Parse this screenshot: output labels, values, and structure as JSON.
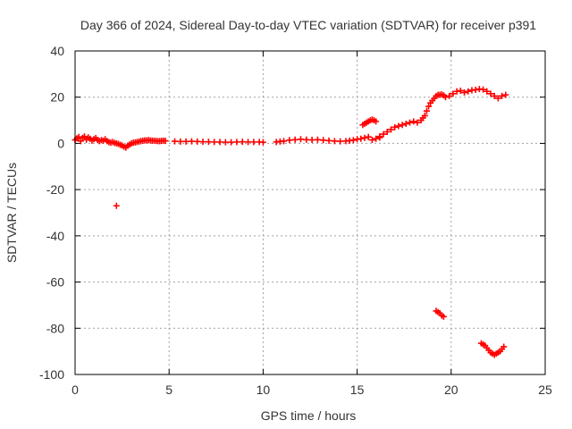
{
  "chart_data": {
    "type": "scatter",
    "title": "Day 366 of 2024, Sidereal Day-to-day VTEC variation (SDTVAR) for receiver p391",
    "xlabel": "GPS time / hours",
    "ylabel": "SDTVAR / TECUs",
    "xlim": [
      0,
      25
    ],
    "ylim": [
      -100,
      40
    ],
    "x_ticks": [
      0,
      5,
      10,
      15,
      20,
      25
    ],
    "y_ticks": [
      -100,
      -80,
      -60,
      -40,
      -20,
      0,
      20,
      40
    ],
    "grid": true,
    "marker": "plus",
    "color": "#ff0000",
    "series": [
      {
        "name": "SDTVAR",
        "x": [
          0.0,
          0.1,
          0.2,
          0.3,
          0.4,
          0.5,
          0.6,
          0.7,
          0.8,
          0.9,
          1.0,
          1.1,
          1.2,
          1.3,
          1.4,
          1.5,
          1.6,
          1.7,
          1.8,
          1.9,
          2.0,
          2.1,
          2.2,
          2.3,
          2.4,
          2.5,
          2.6,
          2.7,
          2.8,
          2.9,
          3.0,
          3.1,
          3.2,
          3.3,
          3.4,
          3.5,
          3.6,
          3.7,
          3.8,
          3.9,
          4.0,
          4.1,
          4.2,
          4.3,
          4.4,
          4.5,
          4.6,
          4.7,
          4.8,
          5.3,
          5.6,
          5.9,
          6.2,
          6.5,
          6.8,
          7.1,
          7.4,
          7.7,
          8.0,
          8.3,
          8.6,
          8.9,
          9.2,
          9.5,
          9.8,
          10.0,
          10.7,
          10.9,
          11.1,
          11.4,
          11.7,
          12.0,
          12.3,
          12.6,
          12.9,
          13.2,
          13.5,
          13.8,
          14.1,
          14.4,
          14.6,
          14.8,
          15.0,
          15.2,
          15.4,
          15.6,
          15.8,
          16.0,
          16.2,
          15.3,
          15.4,
          15.5,
          15.6,
          15.7,
          15.8,
          15.9,
          16.0,
          16.2,
          16.4,
          16.6,
          16.8,
          17.0,
          17.2,
          17.4,
          17.6,
          17.8,
          18.0,
          18.2,
          18.4,
          18.5,
          18.6,
          18.7,
          18.8,
          18.9,
          19.0,
          19.1,
          19.2,
          19.3,
          19.4,
          19.5,
          19.6,
          19.7,
          19.9,
          20.1,
          20.3,
          20.5,
          20.7,
          20.9,
          21.1,
          21.3,
          21.5,
          21.7,
          21.9,
          22.1,
          22.3,
          22.5,
          22.7,
          22.9,
          2.2,
          19.2,
          19.3,
          19.4,
          19.5,
          19.6,
          21.6,
          21.7,
          21.8,
          21.9,
          22.0,
          22.1,
          22.2,
          22.3,
          22.4,
          22.5,
          22.6,
          22.7,
          22.8
        ],
        "y": [
          1.5,
          2.2,
          2.8,
          1.0,
          2.4,
          3.0,
          1.6,
          2.6,
          2.0,
          1.2,
          1.8,
          2.3,
          1.5,
          1.0,
          1.4,
          1.2,
          1.8,
          1.0,
          0.5,
          0.3,
          0.6,
          0.2,
          0.0,
          -0.2,
          -0.6,
          -0.9,
          -1.5,
          -1.8,
          -1.0,
          -0.5,
          0.0,
          0.3,
          0.4,
          0.6,
          0.8,
          1.0,
          1.2,
          1.3,
          1.3,
          1.4,
          1.3,
          1.2,
          1.2,
          1.1,
          1.0,
          1.0,
          1.1,
          1.2,
          1.1,
          0.9,
          0.8,
          0.8,
          0.9,
          0.8,
          0.7,
          0.7,
          0.6,
          0.6,
          0.5,
          0.5,
          0.6,
          0.7,
          0.6,
          0.6,
          0.6,
          0.5,
          0.6,
          0.8,
          1.0,
          1.4,
          1.6,
          1.8,
          1.6,
          1.5,
          1.6,
          1.4,
          1.2,
          1.0,
          0.9,
          1.0,
          1.2,
          1.4,
          1.8,
          2.0,
          2.4,
          2.8,
          1.5,
          2.0,
          2.5,
          8.0,
          8.5,
          9.0,
          9.5,
          10.0,
          10.3,
          10.0,
          9.5,
          3.0,
          4.0,
          5.0,
          6.0,
          7.0,
          7.5,
          8.0,
          8.5,
          9.0,
          9.5,
          9.0,
          10.0,
          11.0,
          12.0,
          14.0,
          16.0,
          17.5,
          18.5,
          19.5,
          20.5,
          21.0,
          21.0,
          21.2,
          20.8,
          20.0,
          20.5,
          21.5,
          22.5,
          22.8,
          22.0,
          22.5,
          23.0,
          23.2,
          23.5,
          23.3,
          22.5,
          21.5,
          20.5,
          19.5,
          20.5,
          21.0,
          -27.0,
          -72.5,
          -73.0,
          -73.5,
          -74.5,
          -75.0,
          -86.5,
          -87.0,
          -87.5,
          -88.5,
          -89.5,
          -90.5,
          -91.0,
          -91.5,
          -91.0,
          -90.5,
          -90.0,
          -89.0,
          -88.0
        ]
      }
    ]
  }
}
